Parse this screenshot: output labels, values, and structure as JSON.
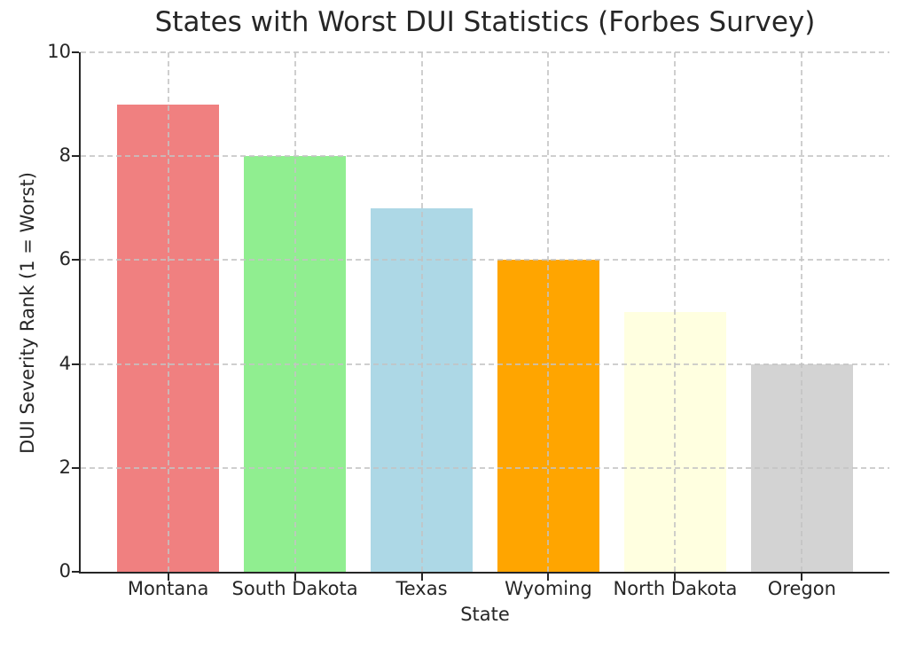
{
  "figure": {
    "title": "States with Worst DUI Statistics (Forbes Survey)",
    "xlabel": "State",
    "ylabel": "DUI Severity Rank (1 = Worst)"
  },
  "chart_data": {
    "type": "bar",
    "title": "States with Worst DUI Statistics (Forbes Survey)",
    "xlabel": "State",
    "ylabel": "DUI Severity Rank (1 = Worst)",
    "categories": [
      "Montana",
      "South Dakota",
      "Texas",
      "Wyoming",
      "North Dakota",
      "Oregon"
    ],
    "values": [
      9,
      8,
      7,
      6,
      5,
      4
    ],
    "bar_colors": [
      "#F08080",
      "#90EE90",
      "#ADD8E6",
      "#FFA500",
      "#FFFFE0",
      "#D3D3D3"
    ],
    "ylim": [
      0,
      10
    ],
    "yticks": [
      0,
      2,
      4,
      6,
      8,
      10
    ],
    "xlim": [
      -0.69,
      5.69
    ],
    "bar_width": 0.8,
    "grid": "dashed horizontal and vertical gridlines, drawn above bars",
    "grid_color": "#c3c3c3",
    "axis_color": "#262626",
    "text_color": "#262626",
    "background_color": "#ffffff",
    "legend": "none"
  }
}
